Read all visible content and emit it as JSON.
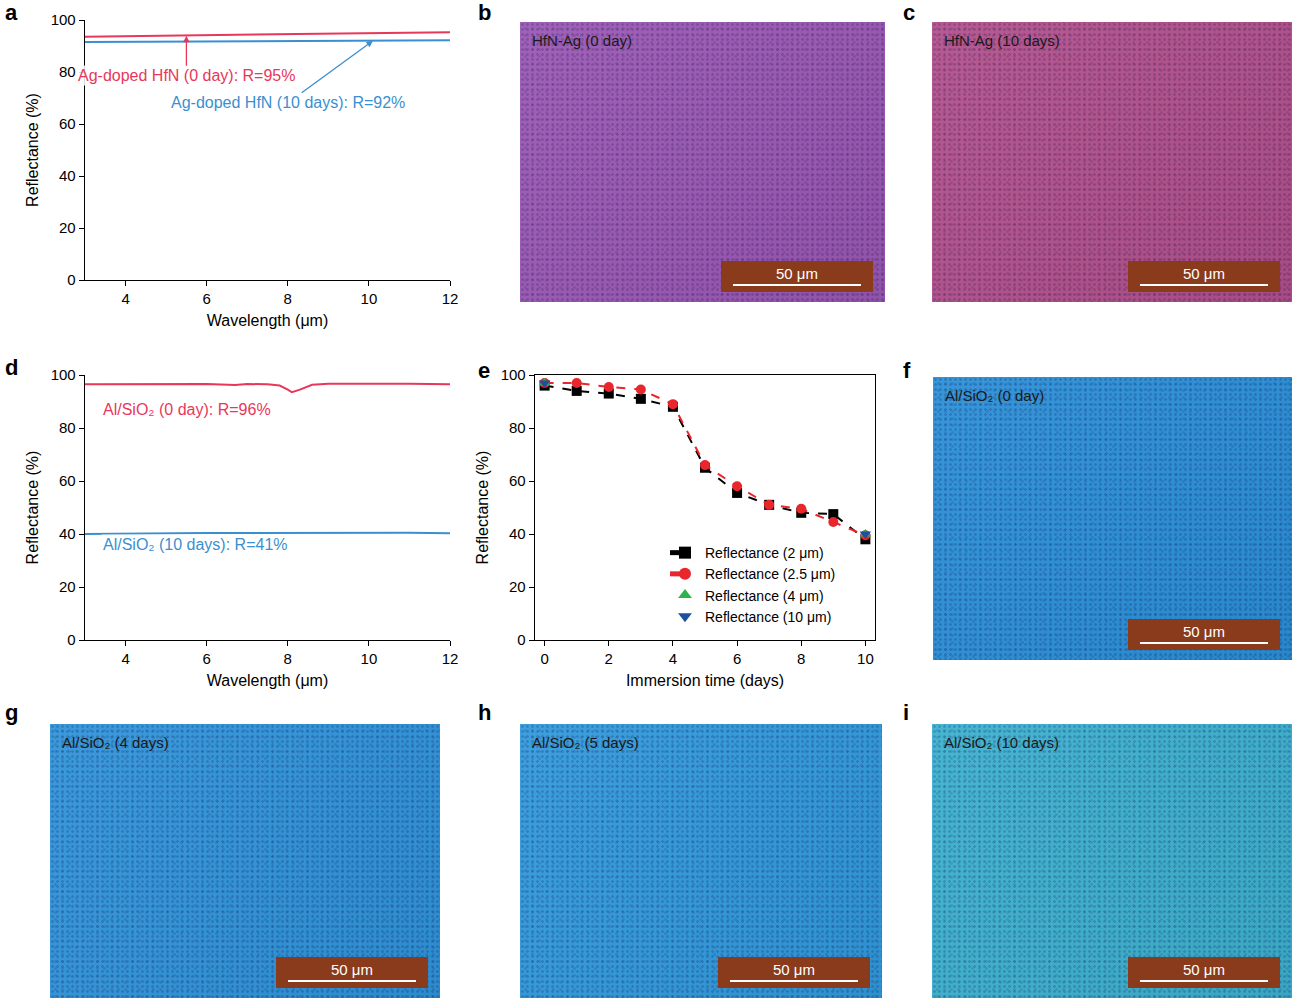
{
  "chart_data": [
    {
      "panel": "a",
      "type": "line",
      "x_label": "Wavelength (μm)",
      "y_label": "Reflectance (%)",
      "x": [
        3,
        4,
        5,
        6,
        7,
        8,
        9,
        10,
        11,
        12
      ],
      "series": [
        {
          "name": "Ag-doped HfN (0 day)",
          "color": "#e8385a",
          "values": [
            93.6,
            93.8,
            94.0,
            94.2,
            94.4,
            94.6,
            94.8,
            95.0,
            95.2,
            95.3
          ]
        },
        {
          "name": "Ag-doped HfN (10 days)",
          "color": "#3a8fd0",
          "values": [
            91.5,
            91.6,
            91.7,
            91.8,
            91.9,
            92.0,
            92.0,
            92.1,
            92.1,
            92.2
          ]
        }
      ],
      "annotations": [
        {
          "text": "Ag-doped HfN (0 day): R=95%",
          "x": 5.5,
          "y": 93.9,
          "color": "#e8385a",
          "arrow": true
        },
        {
          "text": "Ag-doped HfN (10 days): R=92%",
          "x": 10.1,
          "y": 92.0,
          "color": "#3a8fd0",
          "arrow": true
        }
      ],
      "xlim": [
        3,
        12
      ],
      "xticks": [
        4,
        6,
        8,
        10,
        12
      ],
      "ylim": [
        0,
        100
      ],
      "yticks": [
        0,
        20,
        40,
        60,
        80,
        100
      ],
      "grid": false
    },
    {
      "panel": "b",
      "type": "image",
      "label": "HfN-Ag (0 day)",
      "scale_bar": "50 μm",
      "color": "#9a58b4"
    },
    {
      "panel": "c",
      "type": "image",
      "label": "HfN-Ag (10 days)",
      "scale_bar": "50 μm",
      "color": "#b2508c"
    },
    {
      "panel": "d",
      "type": "line",
      "x_label": "Wavelength (μm)",
      "y_label": "Reflectance (%)",
      "x": [
        3,
        4,
        5,
        6,
        6.7,
        7,
        7.5,
        7.8,
        8,
        8.1,
        8.3,
        8.6,
        9,
        10,
        11,
        12
      ],
      "series": [
        {
          "name": "Al/SiO₂ (0 day)",
          "color": "#e8385a",
          "values": [
            96.5,
            96.6,
            96.7,
            96.6,
            96.2,
            96.6,
            96.5,
            96.0,
            94.5,
            93.5,
            94.5,
            96.3,
            96.7,
            96.8,
            96.7,
            96.5
          ]
        },
        {
          "name": "Al/SiO₂ (10 days)",
          "color": "#3a8fd0",
          "values": [
            40.0,
            40.2,
            40.3,
            40.4,
            40.4,
            40.4,
            40.4,
            40.4,
            40.4,
            40.4,
            40.4,
            40.5,
            40.6,
            40.6,
            40.5,
            40.3
          ]
        }
      ],
      "annotations": [
        {
          "text": "Al/SiO₂ (0 day): R=96%",
          "x": 3.4,
          "y": 87,
          "color": "#e8385a",
          "arrow": false
        },
        {
          "text": "Al/SiO₂ (10 days): R=41%",
          "x": 3.4,
          "y": 36,
          "color": "#3a8fd0",
          "arrow": false
        }
      ],
      "xlim": [
        3,
        12
      ],
      "xticks": [
        4,
        6,
        8,
        10,
        12
      ],
      "ylim": [
        0,
        100
      ],
      "yticks": [
        0,
        20,
        40,
        60,
        80,
        100
      ],
      "grid": false
    },
    {
      "panel": "e",
      "type": "line",
      "x_label": "Immersion time (days)",
      "y_label": "Reflectance (%)",
      "series": [
        {
          "name": "Reflectance (2 μm)",
          "color": "#000000",
          "marker": "square",
          "line_style": "dash",
          "x": [
            0,
            1,
            2,
            3,
            4,
            5,
            6,
            7,
            8,
            9,
            10
          ],
          "values": [
            96,
            94,
            93,
            91,
            88,
            65,
            55.5,
            51,
            48,
            47.5,
            38
          ]
        },
        {
          "name": "Reflectance (2.5 μm)",
          "color": "#e8262b",
          "marker": "circle",
          "line_style": "dash",
          "x": [
            0,
            1,
            2,
            3,
            4,
            5,
            6,
            7,
            8,
            9,
            10
          ],
          "values": [
            97,
            97,
            95.5,
            94.5,
            89,
            66,
            58,
            51,
            49.5,
            44.5,
            39.5
          ]
        },
        {
          "name": "Reflectance (4 μm)",
          "color": "#2db34a",
          "marker": "triangle-up",
          "line_style": "none",
          "x": [
            0,
            10
          ],
          "values": [
            97,
            40
          ]
        },
        {
          "name": "Reflectance (10 μm)",
          "color": "#1f4fa0",
          "marker": "triangle-down",
          "line_style": "none",
          "x": [
            0,
            10
          ],
          "values": [
            97,
            40
          ]
        }
      ],
      "xlim": [
        -0.3,
        10.3
      ],
      "xticks": [
        0,
        2,
        4,
        6,
        8,
        10
      ],
      "ylim": [
        0,
        100
      ],
      "yticks": [
        0,
        20,
        40,
        60,
        80,
        100
      ],
      "grid": false,
      "legend": "lower right"
    },
    {
      "panel": "f",
      "type": "image",
      "label": "Al/SiO₂ (0 day)",
      "scale_bar": "50 μm",
      "color": "#2b8fd8"
    },
    {
      "panel": "g",
      "type": "image",
      "label": "Al/SiO₂ (4 days)",
      "scale_bar": "50 μm",
      "color": "#2f93da"
    },
    {
      "panel": "h",
      "type": "image",
      "label": "Al/SiO₂ (5 days)",
      "scale_bar": "50 μm",
      "color": "#3199dc"
    },
    {
      "panel": "i",
      "type": "image",
      "label": "Al/SiO₂ (10 days)",
      "scale_bar": "50 μm",
      "color": "#3cb0cf"
    }
  ]
}
